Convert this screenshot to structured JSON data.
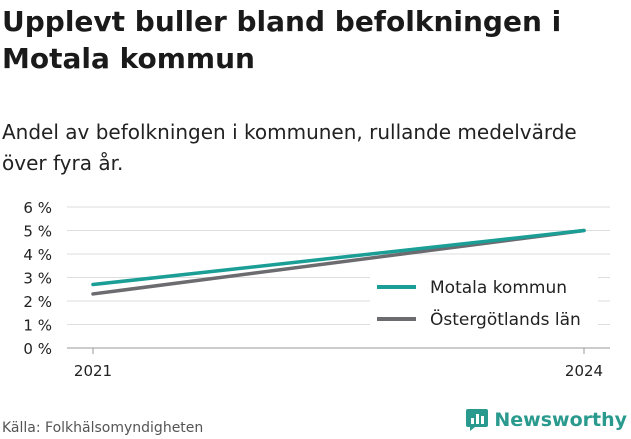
{
  "header": {
    "title": "Upplevt buller bland befolkningen i Motala kommun",
    "subtitle": "Andel av befolkningen i kommunen, rullande medelvärde över fyra år."
  },
  "footer": {
    "source": "Källa: Folkhälsomyndigheten",
    "brand": "Newsworthy",
    "brand_icon": "bar-chart-logo-icon"
  },
  "chart_data": {
    "type": "line",
    "x": [
      2021,
      2024
    ],
    "series": [
      {
        "name": "Motala kommun",
        "color": "#1a9e96",
        "values": [
          2.7,
          5.0
        ]
      },
      {
        "name": "Östergötlands län",
        "color": "#6b6b70",
        "values": [
          2.3,
          5.0
        ]
      }
    ],
    "ylim": [
      0,
      6
    ],
    "yticks": [
      0,
      1,
      2,
      3,
      4,
      5,
      6
    ],
    "ytick_labels": [
      "0 %",
      "1 %",
      "2 %",
      "3 %",
      "4 %",
      "5 %",
      "6 %"
    ],
    "xticks": [
      2021,
      2024
    ],
    "xtick_labels": [
      "2021",
      "2024"
    ],
    "grid": true,
    "legend_position": "bottom-right"
  }
}
